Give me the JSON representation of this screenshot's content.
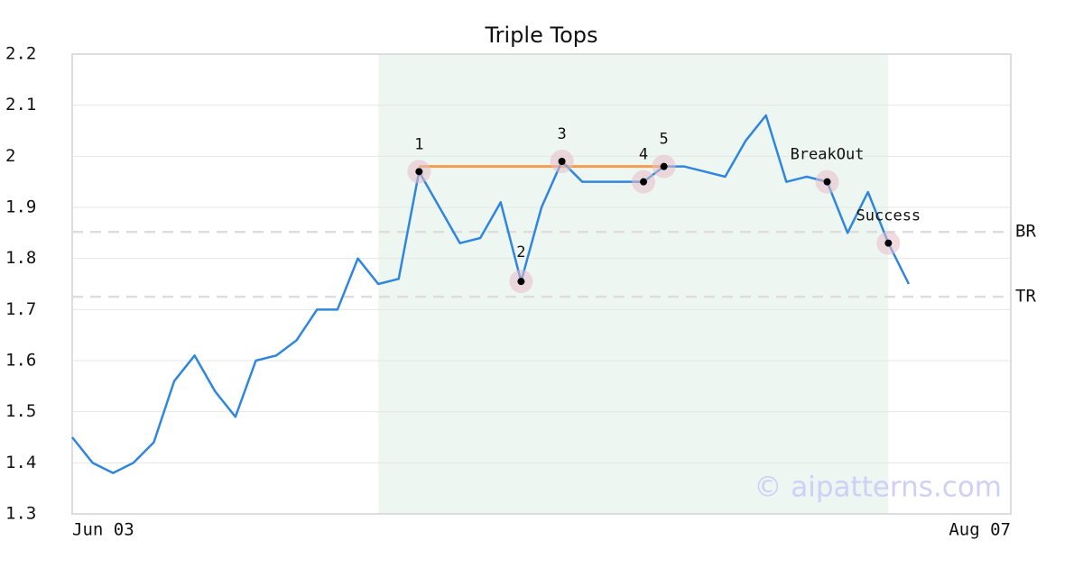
{
  "chart_data": {
    "type": "line",
    "title": "Triple Tops",
    "categories": [
      "Jun 03",
      null,
      null,
      null,
      null,
      null,
      null,
      null,
      null,
      null,
      null,
      null,
      null,
      null,
      null,
      null,
      null,
      null,
      null,
      null,
      null,
      null,
      null,
      null,
      null,
      null,
      null,
      null,
      null,
      null,
      null,
      null,
      null,
      null,
      null,
      null,
      null,
      null,
      null,
      null,
      null,
      null,
      null,
      null,
      null,
      null,
      "Aug 07"
    ],
    "values": [
      1.45,
      1.4,
      1.38,
      1.4,
      1.44,
      1.56,
      1.61,
      1.54,
      1.49,
      1.6,
      1.61,
      1.64,
      1.7,
      1.7,
      1.8,
      1.75,
      1.76,
      1.97,
      1.9,
      1.83,
      1.84,
      1.91,
      1.755,
      1.9,
      1.99,
      1.95,
      1.95,
      1.95,
      1.95,
      1.98,
      1.98,
      1.97,
      1.96,
      2.03,
      2.08,
      1.95,
      1.96,
      1.95,
      1.85,
      1.93,
      1.83,
      1.75,
      null,
      null,
      null,
      null,
      null
    ],
    "color": "#2e86de",
    "ylim": [
      1.3,
      2.2
    ],
    "yticks": [
      1.3,
      1.4,
      1.5,
      1.6,
      1.7,
      1.8,
      1.9,
      2.0,
      2.1,
      2.2
    ],
    "grid": true,
    "span": {
      "from": 15,
      "to": 40,
      "color": "#eef6f2"
    },
    "resistance": {
      "value": 1.98,
      "from": 17,
      "to": 29,
      "color": "#f39c4a"
    },
    "levels": [
      {
        "label": "BR",
        "value": 1.852
      },
      {
        "label": "TR",
        "value": 1.725
      }
    ],
    "points": [
      {
        "label": "1",
        "index": 17
      },
      {
        "label": "2",
        "index": 22
      },
      {
        "label": "3",
        "index": 24
      },
      {
        "label": "4",
        "index": 28
      },
      {
        "label": "5",
        "index": 29
      },
      {
        "label": "BreakOut",
        "index": 37
      },
      {
        "label": "Success",
        "index": 40
      }
    ],
    "watermark": "© aipatterns.com"
  }
}
